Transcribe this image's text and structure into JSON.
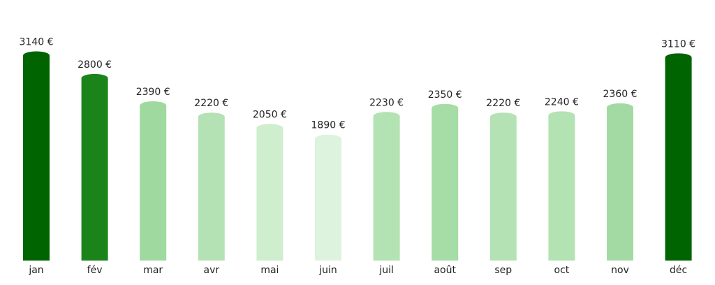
{
  "chart_data": {
    "type": "bar",
    "title": "",
    "xlabel": "",
    "ylabel": "",
    "ylim": [
      0,
      3900
    ],
    "grid": false,
    "categories": [
      "jan",
      "fév",
      "mar",
      "avr",
      "mai",
      "juin",
      "juil",
      "août",
      "sep",
      "oct",
      "nov",
      "déc"
    ],
    "values": [
      3140,
      2800,
      2390,
      2220,
      2050,
      1890,
      2230,
      2350,
      2220,
      2240,
      2360,
      3110
    ],
    "data_labels": [
      "3140 €",
      "2800 €",
      "2390 €",
      "2220 €",
      "2050 €",
      "1890 €",
      "2230 €",
      "2350 €",
      "2220 €",
      "2240 €",
      "2360 €",
      "3110 €"
    ],
    "colors": [
      "#006400",
      "#1a841a",
      "#a0d9a0",
      "#b4e2b4",
      "#ceeece",
      "#ddf3dd",
      "#b3e2b3",
      "#a6dca6",
      "#b4e2b4",
      "#b3e2b3",
      "#a3daa3",
      "#006400"
    ]
  }
}
